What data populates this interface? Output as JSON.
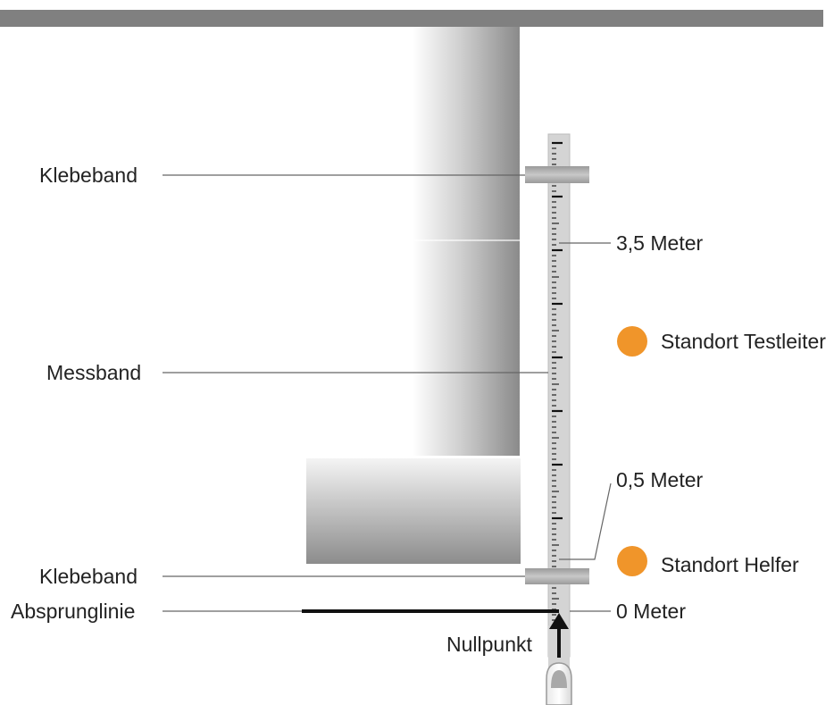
{
  "labels": {
    "tape_top": "Klebeband",
    "measuring_tape": "Messband",
    "tape_bottom": "Klebeband",
    "takeoff_line": "Absprunglinie",
    "zero_point": "Nullpunkt",
    "mark_3_5": "3,5 Meter",
    "mark_0_5": "0,5 Meter",
    "mark_0": "0 Meter",
    "position_examiner": "Standort Testleiter",
    "position_helper": "Standort Helfer"
  },
  "colors": {
    "ceiling": "#808080",
    "marker": "#f0952a",
    "tape": "#d2d2d2",
    "line": "#555555"
  },
  "icons": {
    "zero_arrow": "arrow-up-icon",
    "position_marker": "orange-dot-icon"
  }
}
